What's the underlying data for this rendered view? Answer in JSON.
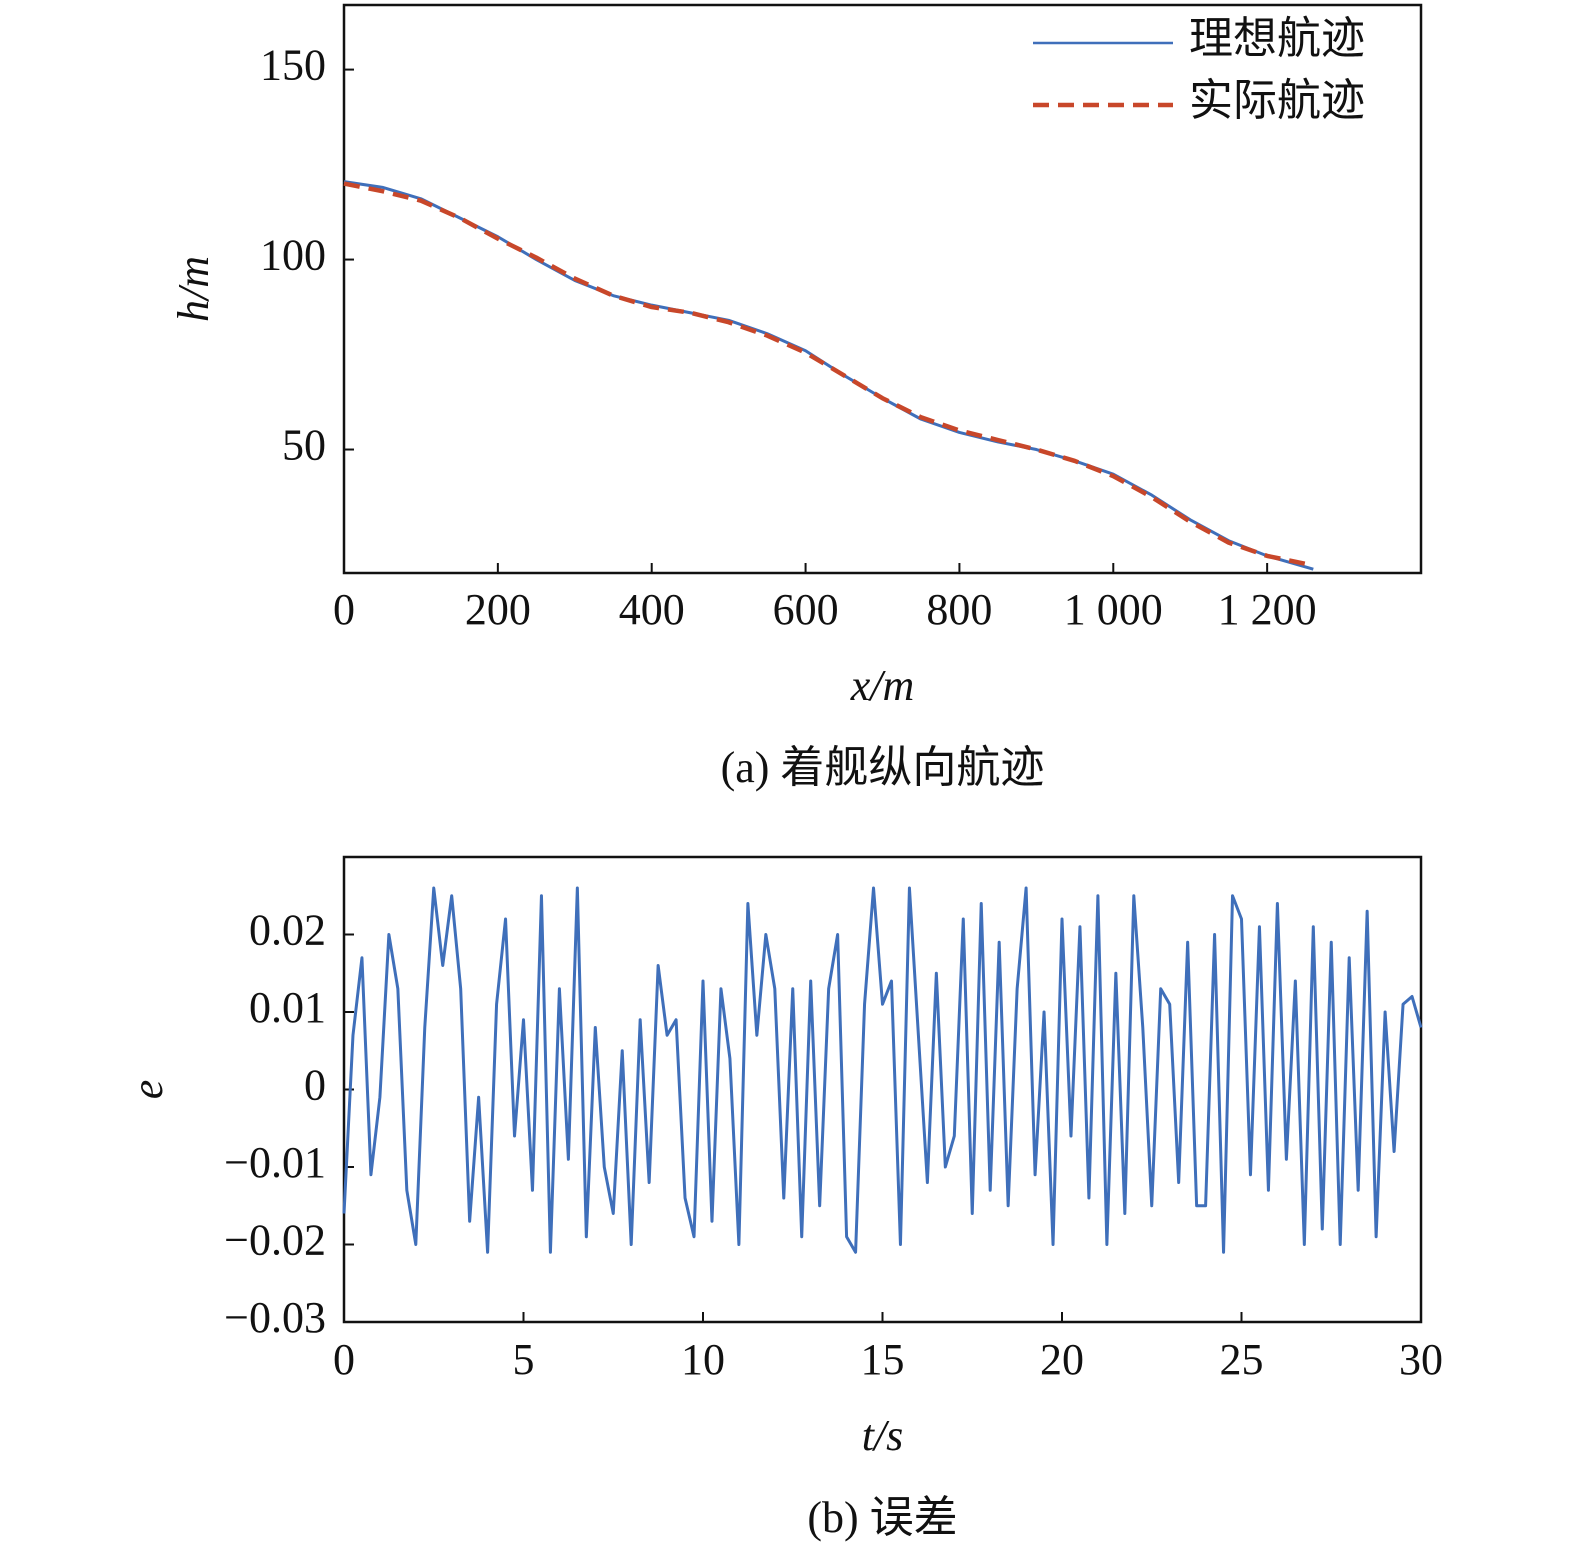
{
  "chart_data": [
    {
      "type": "line",
      "caption": "(a) 着舰纵向航迹",
      "xlabel": "x/m",
      "ylabel": "h/m",
      "x": [
        0,
        50,
        100,
        150,
        200,
        250,
        300,
        350,
        400,
        450,
        500,
        550,
        600,
        650,
        700,
        750,
        800,
        850,
        900,
        950,
        1000,
        1050,
        1100,
        1150,
        1200,
        1260
      ],
      "series": [
        {
          "name": "理想航迹",
          "color": "#3f6fba",
          "style": "solid",
          "values": [
            120.5,
            119,
            116,
            111,
            106,
            100,
            94.5,
            90.5,
            88,
            86,
            84,
            80.5,
            76,
            69.5,
            63.5,
            58,
            54.5,
            52,
            50,
            47,
            43.5,
            38,
            31.5,
            26,
            22,
            18.5
          ]
        },
        {
          "name": "实际航迹",
          "color": "#c8472a",
          "style": "dashed",
          "values": [
            120,
            118,
            115.5,
            111,
            105.5,
            100.5,
            95,
            90.5,
            87.5,
            86,
            83.5,
            80,
            75.5,
            69.5,
            63.5,
            58.5,
            55,
            52.5,
            50,
            47,
            43,
            37.5,
            31,
            25.5,
            22,
            19.5
          ]
        }
      ],
      "xlim": [
        0,
        1400
      ],
      "xticks": [
        0,
        200,
        400,
        600,
        800,
        {
          "value": 1000,
          "label": "1 000"
        },
        {
          "value": 1200,
          "label": "1 200"
        }
      ],
      "ylim": [
        17.5,
        167
      ],
      "yticks": [
        50,
        100,
        150
      ],
      "legend": "upper right"
    },
    {
      "type": "line",
      "caption": "(b) 误差",
      "xlabel": "t/s",
      "ylabel": "e",
      "x": [
        0,
        0.25,
        0.5,
        0.75,
        1,
        1.25,
        1.5,
        1.75,
        2,
        2.25,
        2.5,
        2.75,
        3,
        3.25,
        3.5,
        3.75,
        4,
        4.25,
        4.5,
        4.75,
        5,
        5.25,
        5.5,
        5.75,
        6,
        6.25,
        6.5,
        6.75,
        7,
        7.25,
        7.5,
        7.75,
        8,
        8.25,
        8.5,
        8.75,
        9,
        9.25,
        9.5,
        9.75,
        10,
        10.25,
        10.5,
        10.75,
        11,
        11.25,
        11.5,
        11.75,
        12,
        12.25,
        12.5,
        12.75,
        13,
        13.25,
        13.5,
        13.75,
        14,
        14.25,
        14.5,
        14.75,
        15,
        15.25,
        15.5,
        15.75,
        16,
        16.25,
        16.5,
        16.75,
        17,
        17.25,
        17.5,
        17.75,
        18,
        18.25,
        18.5,
        18.75,
        19,
        19.25,
        19.5,
        19.75,
        20,
        20.25,
        20.5,
        20.75,
        21,
        21.25,
        21.5,
        21.75,
        22,
        22.25,
        22.5,
        22.75,
        23,
        23.25,
        23.5,
        23.75,
        24,
        24.25,
        24.5,
        24.75,
        25,
        25.25,
        25.5,
        25.75,
        26,
        26.25,
        26.5,
        26.75,
        27,
        27.25,
        27.5,
        27.75,
        28,
        28.25,
        28.5,
        28.75,
        29,
        29.25,
        29.5,
        29.75,
        30
      ],
      "series": [
        {
          "color": "#3f6fba",
          "style": "solid",
          "values": [
            -0.016,
            0.007,
            0.017,
            -0.011,
            -0.001,
            0.02,
            0.013,
            -0.013,
            -0.02,
            0.008,
            0.026,
            0.016,
            0.025,
            0.013,
            -0.017,
            -0.001,
            -0.021,
            0.011,
            0.022,
            -0.006,
            0.009,
            -0.013,
            0.025,
            -0.021,
            0.013,
            -0.009,
            0.026,
            -0.019,
            0.008,
            -0.01,
            -0.016,
            0.005,
            -0.02,
            0.009,
            -0.012,
            0.016,
            0.007,
            0.009,
            -0.014,
            -0.019,
            0.014,
            -0.017,
            0.013,
            0.004,
            -0.02,
            0.024,
            0.007,
            0.02,
            0.013,
            -0.014,
            0.013,
            -0.019,
            0.014,
            -0.015,
            0.013,
            0.02,
            -0.019,
            -0.021,
            0.011,
            0.026,
            0.011,
            0.014,
            -0.02,
            0.026,
            0.007,
            -0.012,
            0.015,
            -0.01,
            -0.006,
            0.022,
            -0.016,
            0.024,
            -0.013,
            0.019,
            -0.015,
            0.013,
            0.026,
            -0.011,
            0.01,
            -0.02,
            0.022,
            -0.006,
            0.021,
            -0.014,
            0.025,
            -0.02,
            0.015,
            -0.016,
            0.025,
            0.008,
            -0.015,
            0.013,
            0.011,
            -0.012,
            0.019,
            -0.015,
            -0.015,
            0.02,
            -0.021,
            0.025,
            0.022,
            -0.011,
            0.021,
            -0.013,
            0.024,
            -0.009,
            0.014,
            -0.02,
            0.021,
            -0.018,
            0.019,
            -0.02,
            0.017,
            -0.013,
            0.023,
            -0.019,
            0.01,
            -0.008,
            0.011,
            0.012,
            0.008
          ]
        }
      ],
      "xlim": [
        0,
        30
      ],
      "xticks": [
        0,
        5,
        10,
        15,
        20,
        25,
        30
      ],
      "ylim": [
        -0.03,
        0.03
      ],
      "yticks": [
        {
          "value": -0.03,
          "label": "−0.03"
        },
        {
          "value": -0.02,
          "label": "−0.02"
        },
        {
          "value": -0.01,
          "label": "−0.01"
        },
        0,
        0.01,
        0.02
      ]
    }
  ]
}
